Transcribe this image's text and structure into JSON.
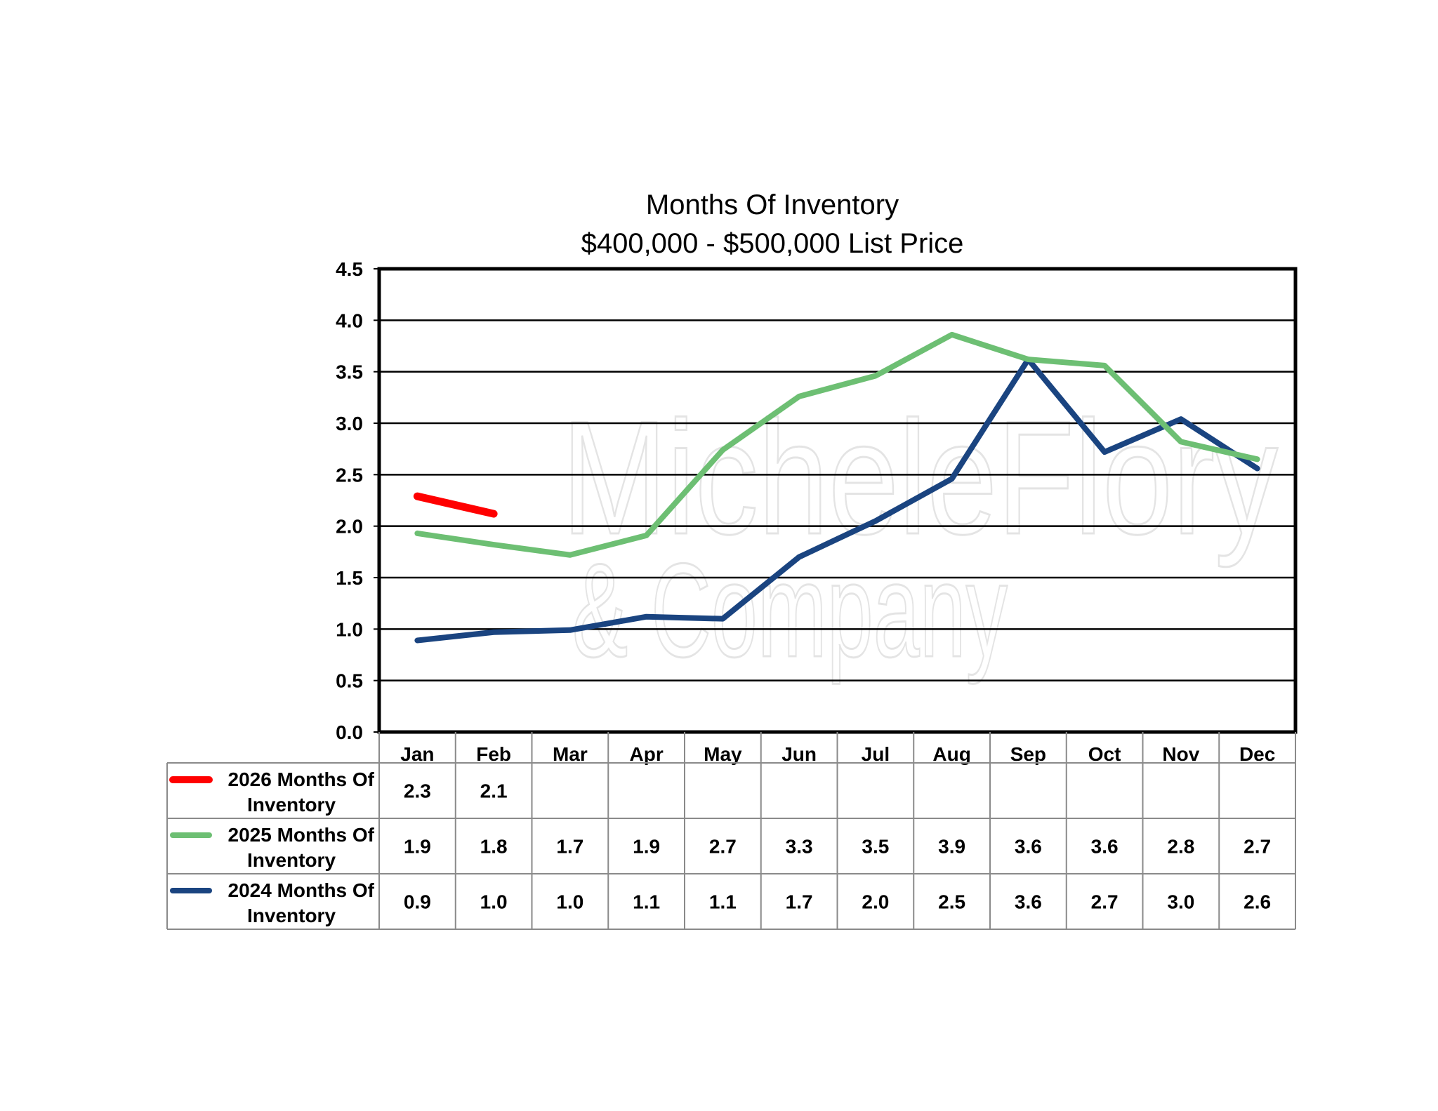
{
  "chart_data": {
    "type": "line",
    "title": "Months Of Inventory",
    "subtitle": "$400,000 - $500,000 List Price",
    "xlabel": "",
    "ylabel": "",
    "ylim": [
      0,
      4.5
    ],
    "ytick_step": 0.5,
    "yticks": [
      "0.0",
      "0.5",
      "1.0",
      "1.5",
      "2.0",
      "2.5",
      "3.0",
      "3.5",
      "4.0",
      "4.5"
    ],
    "grid": true,
    "legend": "data-table-below",
    "categories": [
      "Jan",
      "Feb",
      "Mar",
      "Apr",
      "May",
      "Jun",
      "Jul",
      "Aug",
      "Sep",
      "Oct",
      "Nov",
      "Dec"
    ],
    "series": [
      {
        "name_line1": "2026 Months Of",
        "name_line2": "Inventory",
        "color": "#ff0000",
        "values": [
          2.29,
          2.12,
          null,
          null,
          null,
          null,
          null,
          null,
          null,
          null,
          null,
          null
        ],
        "labels": [
          "2.3",
          "2.1",
          "",
          "",
          "",
          "",
          "",
          "",
          "",
          "",
          "",
          ""
        ]
      },
      {
        "name_line1": "2025 Months Of",
        "name_line2": "Inventory",
        "color": "#6dbf73",
        "values": [
          1.93,
          1.82,
          1.72,
          1.91,
          2.74,
          3.26,
          3.46,
          3.86,
          3.62,
          3.56,
          2.82,
          2.65
        ],
        "labels": [
          "1.9",
          "1.8",
          "1.7",
          "1.9",
          "2.7",
          "3.3",
          "3.5",
          "3.9",
          "3.6",
          "3.6",
          "2.8",
          "2.7"
        ]
      },
      {
        "name_line1": "2024 Months Of",
        "name_line2": "Inventory",
        "color": "#1a4480",
        "values": [
          0.89,
          0.97,
          0.99,
          1.12,
          1.1,
          1.7,
          2.05,
          2.46,
          3.62,
          2.72,
          3.04,
          2.56
        ],
        "labels": [
          "0.9",
          "1.0",
          "1.0",
          "1.1",
          "1.1",
          "1.7",
          "2.0",
          "2.5",
          "3.6",
          "2.7",
          "3.0",
          "2.6"
        ]
      }
    ]
  },
  "watermark": {
    "line1": "MicheleFlory",
    "line2": "& Company"
  }
}
